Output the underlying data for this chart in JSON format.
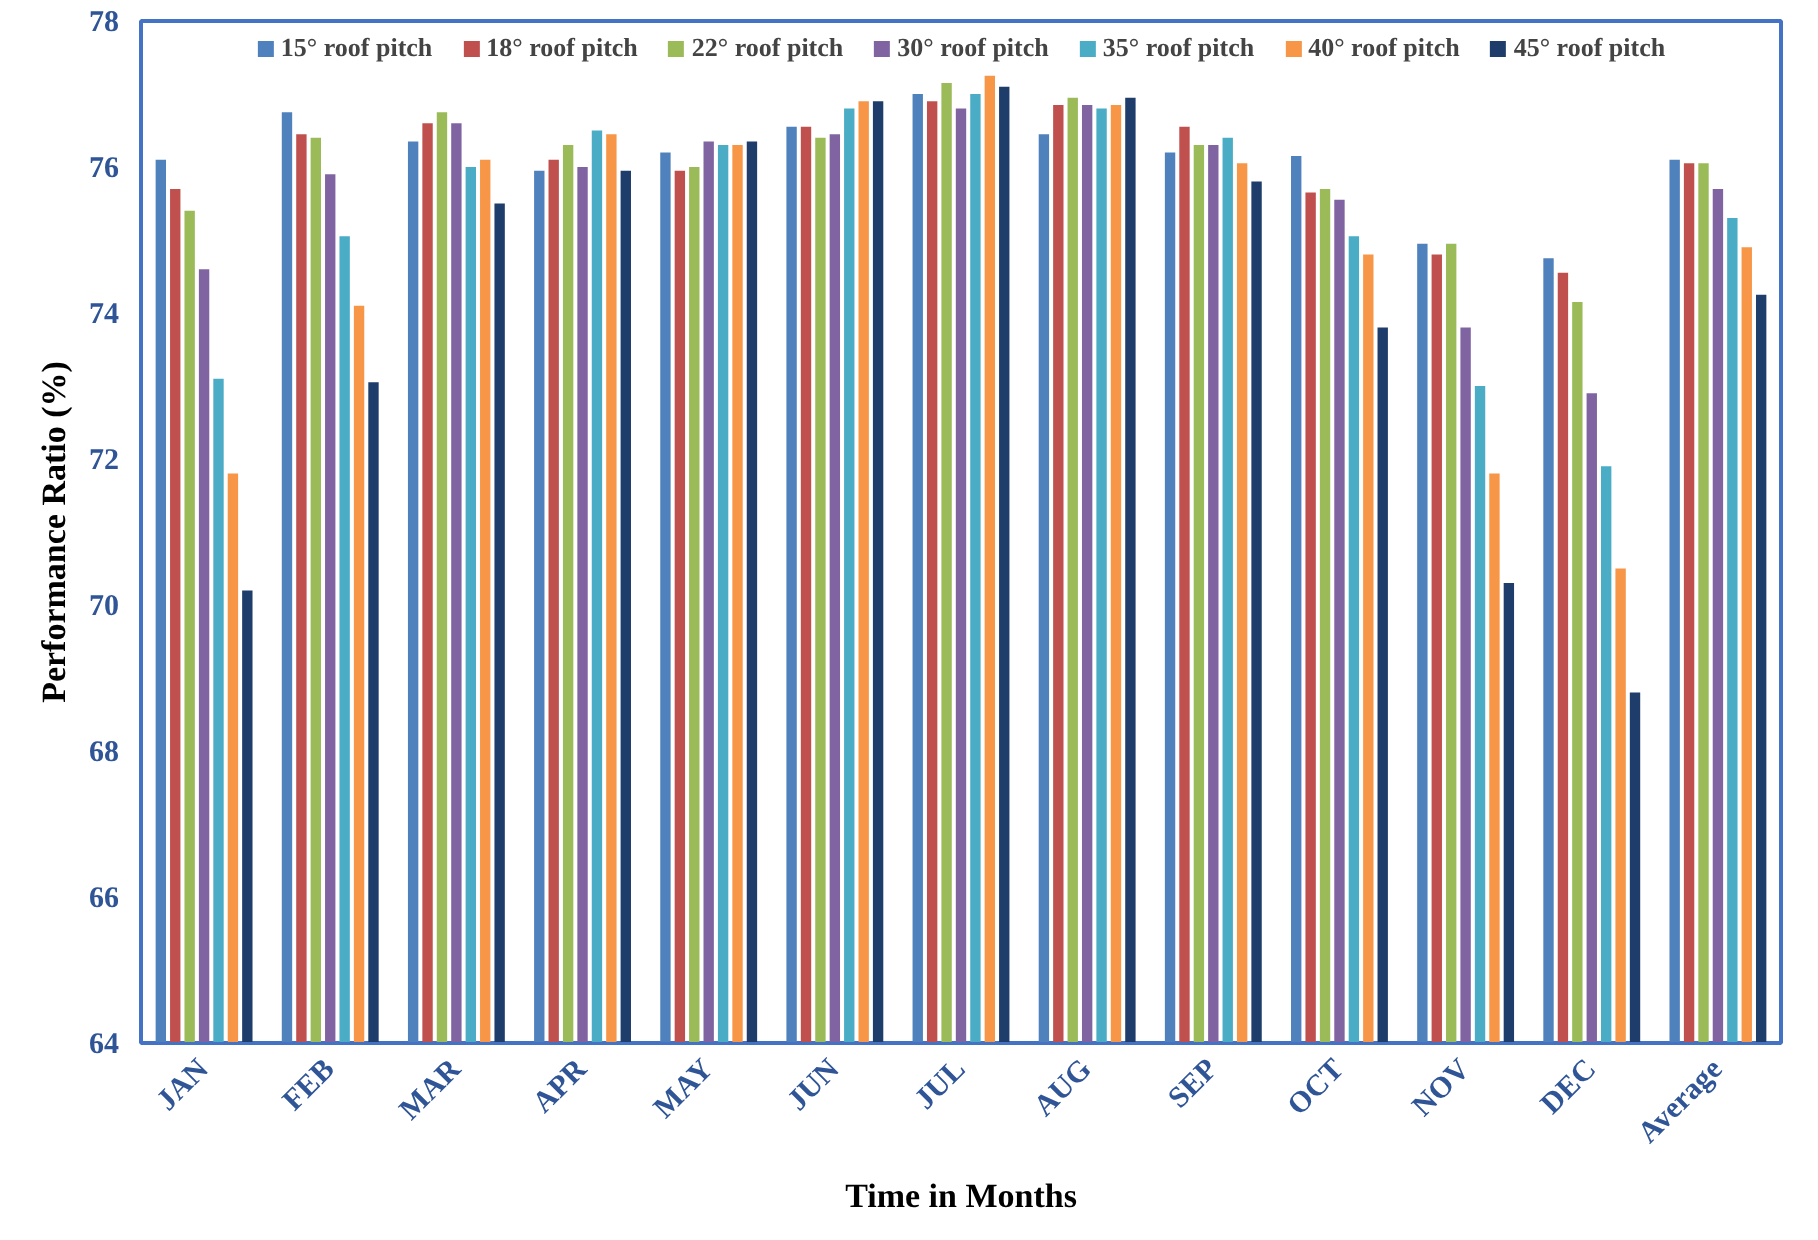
{
  "chart_data": {
    "type": "bar",
    "xlabel": "Time in Months",
    "ylabel": "Performance Ratio (%)",
    "categories": [
      "JAN",
      "FEB",
      "MAR",
      "APR",
      "MAY",
      "JUN",
      "JUL",
      "AUG",
      "SEP",
      "OCT",
      "NOV",
      "DEC",
      "Average"
    ],
    "ylim": [
      64,
      78
    ],
    "yticks": [
      64,
      66,
      68,
      70,
      72,
      74,
      76,
      78
    ],
    "grid": false,
    "legend": "top",
    "series": [
      {
        "name": "15° roof pitch",
        "color": "#4f81bd",
        "values": [
          76.1,
          76.75,
          76.35,
          75.95,
          76.2,
          76.55,
          77.0,
          76.45,
          76.2,
          76.15,
          74.95,
          74.75,
          76.1
        ]
      },
      {
        "name": "18° roof pitch",
        "color": "#c0504d",
        "values": [
          75.7,
          76.45,
          76.6,
          76.1,
          75.95,
          76.55,
          76.9,
          76.85,
          76.55,
          75.65,
          74.8,
          74.55,
          76.05
        ]
      },
      {
        "name": "22° roof pitch",
        "color": "#9bbb59",
        "values": [
          75.4,
          76.4,
          76.75,
          76.3,
          76.0,
          76.4,
          77.15,
          76.95,
          76.3,
          75.7,
          74.95,
          74.15,
          76.05
        ]
      },
      {
        "name": "30° roof pitch",
        "color": "#8064a2",
        "values": [
          74.6,
          75.9,
          76.6,
          76.0,
          76.35,
          76.45,
          76.8,
          76.85,
          76.3,
          75.55,
          73.8,
          72.9,
          75.7
        ]
      },
      {
        "name": "35° roof pitch",
        "color": "#4bacc6",
        "values": [
          73.1,
          75.05,
          76.0,
          76.5,
          76.3,
          76.8,
          77.0,
          76.8,
          76.4,
          75.05,
          73.0,
          71.9,
          75.3
        ]
      },
      {
        "name": "40° roof pitch",
        "color": "#f79646",
        "values": [
          71.8,
          74.1,
          76.1,
          76.45,
          76.3,
          76.9,
          77.25,
          76.85,
          76.05,
          74.8,
          71.8,
          70.5,
          74.9
        ]
      },
      {
        "name": "45° roof pitch",
        "color": "#1f3d6b",
        "values": [
          70.2,
          73.05,
          75.5,
          75.95,
          76.35,
          76.9,
          77.1,
          76.95,
          75.8,
          73.8,
          70.3,
          68.8,
          74.25
        ]
      }
    ]
  }
}
